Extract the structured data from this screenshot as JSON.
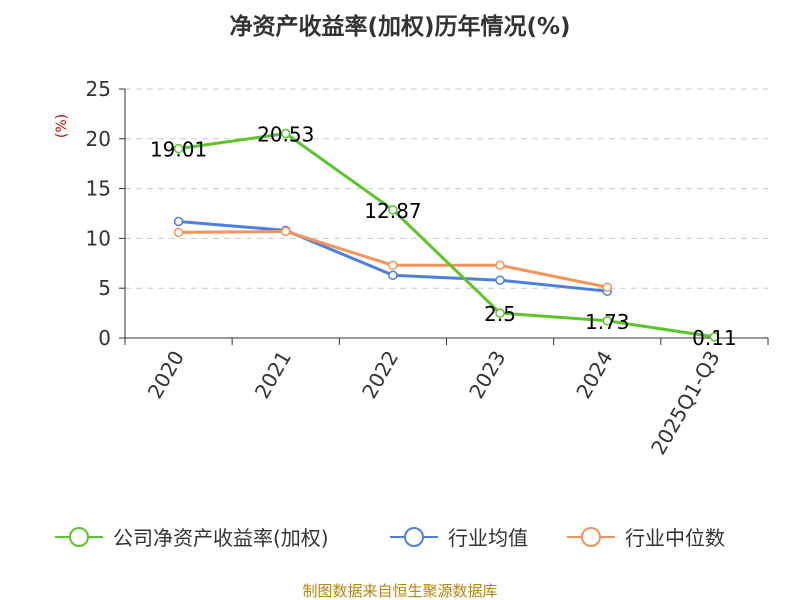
{
  "chart_data": {
    "type": "line",
    "title": "净资产收益率(加权)历年情况(%)",
    "ylabel": "(%)",
    "xlabel": "",
    "ylim": [
      0,
      25
    ],
    "yticks": [
      0,
      5,
      10,
      15,
      20,
      25
    ],
    "grid": true,
    "legend_position": "bottom",
    "categories": [
      "2020",
      "2021",
      "2022",
      "2023",
      "2024",
      "2025Q1-Q3"
    ],
    "series": [
      {
        "name": "公司净资产收益率(加权)",
        "color": "#5cc52a",
        "values": [
          19.01,
          20.53,
          12.87,
          2.5,
          1.73,
          0.11
        ],
        "labels": [
          "19.01",
          "20.53",
          "12.87",
          "2.5",
          "1.73",
          "0.11"
        ]
      },
      {
        "name": "行业均值",
        "color": "#4e7fde",
        "values": [
          11.7,
          10.8,
          6.3,
          5.8,
          4.7,
          null
        ]
      },
      {
        "name": "行业中位数",
        "color": "#f4935a",
        "values": [
          10.6,
          10.7,
          7.3,
          7.3,
          5.1,
          null
        ]
      }
    ],
    "source": "制图数据来自恒生聚源数据库"
  }
}
